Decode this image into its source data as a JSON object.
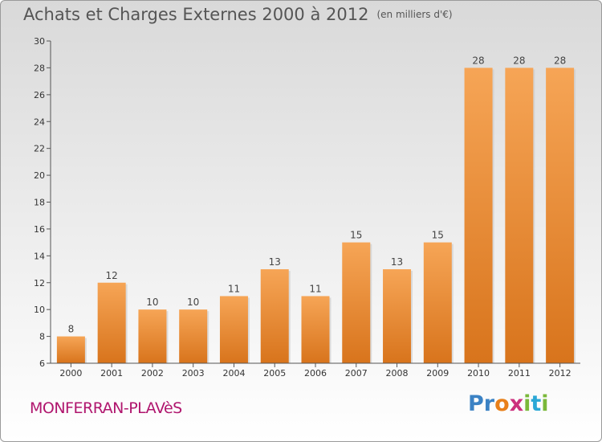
{
  "chart_data": {
    "type": "bar",
    "title": "Achats et Charges Externes 2000 à 2012",
    "subtitle": "(en milliers d'€)",
    "categories": [
      "2000",
      "2001",
      "2002",
      "2003",
      "2004",
      "2005",
      "2006",
      "2007",
      "2008",
      "2009",
      "2010",
      "2011",
      "2012"
    ],
    "values": [
      8,
      12,
      10,
      10,
      11,
      13,
      11,
      15,
      13,
      15,
      28,
      28,
      28
    ],
    "ylim": [
      6,
      30
    ],
    "yticks": [
      6,
      8,
      10,
      12,
      14,
      16,
      18,
      20,
      22,
      24,
      26,
      28,
      30
    ],
    "grid": false,
    "legend": "none",
    "bar_color_top": "#f6a556",
    "bar_color_bottom": "#d8741c"
  },
  "footer": {
    "location": "MONFERRAN-PLAVèS",
    "brand_letters": [
      "P",
      "r",
      "o",
      "x",
      "i",
      "t",
      "i"
    ],
    "brand_colors": [
      "#3b82c4",
      "#3b82c4",
      "#e8801a",
      "#cc2f7d",
      "#7ab83a",
      "#2aa7d6",
      "#7ab83a"
    ]
  }
}
